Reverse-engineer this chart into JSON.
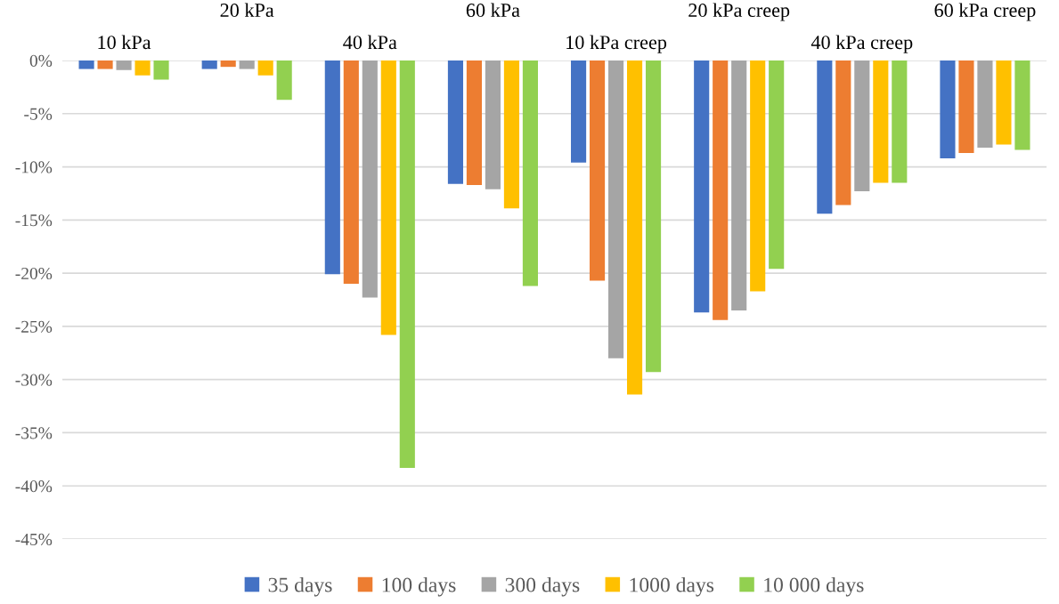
{
  "chart_data": {
    "type": "bar",
    "categories": [
      "10 kPa",
      "20 kPa",
      "40 kPa",
      "60 kPa",
      "10 kPa creep",
      "20 kPa creep",
      "40 kPa creep",
      "60 kPa creep"
    ],
    "series": [
      {
        "name": "35 days",
        "color": "#4472c4",
        "values": [
          -0.8,
          -0.8,
          -20.1,
          -11.6,
          -9.6,
          -23.7,
          -14.4,
          -9.2
        ]
      },
      {
        "name": "100 days",
        "color": "#ed7d31",
        "values": [
          -0.8,
          -0.6,
          -21.0,
          -11.7,
          -20.7,
          -24.4,
          -13.6,
          -8.7
        ]
      },
      {
        "name": "300 days",
        "color": "#a5a5a5",
        "values": [
          -0.9,
          -0.8,
          -22.3,
          -12.1,
          -28.0,
          -23.5,
          -12.3,
          -8.2
        ]
      },
      {
        "name": "1000 days",
        "color": "#ffc000",
        "values": [
          -1.4,
          -1.4,
          -25.8,
          -13.9,
          -31.4,
          -21.7,
          -11.5,
          -7.9
        ]
      },
      {
        "name": "10 000 days",
        "color": "#92d050",
        "values": [
          -1.8,
          -3.7,
          -38.3,
          -21.2,
          -29.3,
          -19.6,
          -11.5,
          -8.4
        ]
      }
    ],
    "ylim": [
      -45,
      0
    ],
    "yticks": [
      {
        "value": 0,
        "label": "0%"
      },
      {
        "value": -5,
        "label": "-5%"
      },
      {
        "value": -10,
        "label": "-10%"
      },
      {
        "value": -15,
        "label": "-15%"
      },
      {
        "value": -20,
        "label": "-20%"
      },
      {
        "value": -25,
        "label": "-25%"
      },
      {
        "value": -30,
        "label": "-30%"
      },
      {
        "value": -35,
        "label": "-35%"
      },
      {
        "value": -40,
        "label": "-40%"
      },
      {
        "value": -45,
        "label": "-45%"
      }
    ],
    "grid": "y",
    "legend": "bottom"
  }
}
